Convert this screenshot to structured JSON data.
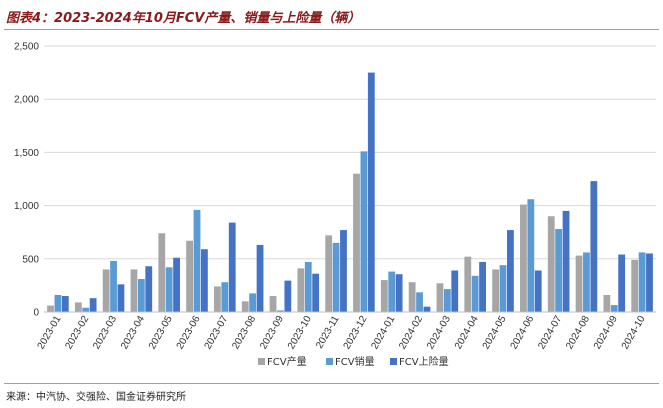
{
  "title": "图表4：2023-2024年10月FCV产量、销量与上险量（辆）",
  "source": "来源：中汽协、交强险、国金证券研究所",
  "chart_data": {
    "type": "bar",
    "categories": [
      "2023-01",
      "2023-02",
      "2023-03",
      "2023-04",
      "2023-05",
      "2023-06",
      "2023-07",
      "2023-08",
      "2023-09",
      "2023-10",
      "2023-11",
      "2023-12",
      "2024-01",
      "2024-02",
      "2024-03",
      "2024-04",
      "2024-05",
      "2024-06",
      "2024-07",
      "2024-08",
      "2024-09",
      "2024-10"
    ],
    "series": [
      {
        "name": "FCV产量",
        "color": "#a6a6a6",
        "values": [
          60,
          90,
          400,
          400,
          740,
          670,
          240,
          100,
          150,
          410,
          720,
          1300,
          300,
          280,
          270,
          520,
          400,
          1010,
          900,
          530,
          160,
          490
        ]
      },
      {
        "name": "FCV销量",
        "color": "#5b9bd5",
        "values": [
          160,
          40,
          480,
          310,
          420,
          960,
          280,
          175,
          15,
          470,
          650,
          1510,
          380,
          185,
          215,
          340,
          440,
          1060,
          780,
          560,
          65,
          560
        ]
      },
      {
        "name": "FCV上险量",
        "color": "#4472c4",
        "values": [
          150,
          130,
          260,
          430,
          510,
          590,
          840,
          630,
          295,
          360,
          770,
          2250,
          355,
          50,
          390,
          470,
          770,
          390,
          950,
          1230,
          540,
          550
        ]
      }
    ],
    "yticks": [
      "0",
      "500",
      "1,000",
      "1,500",
      "2,000",
      "2,500"
    ],
    "ylim": [
      0,
      2500
    ],
    "legend": "bottom",
    "grid": true
  }
}
